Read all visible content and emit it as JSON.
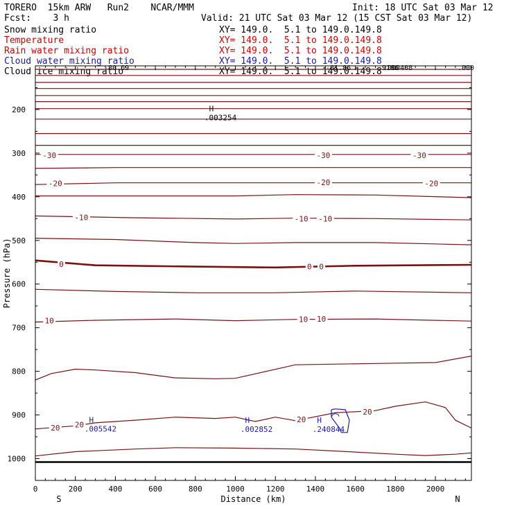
{
  "header": {
    "model": "TORERO  15km ARW   Run2    NCAR/MMM",
    "init": "Init: 18 UTC Sat 03 Mar 12",
    "fcst": "Fcst:    3 h",
    "valid": "Valid: 21 UTC Sat 03 Mar 12 (15 CST Sat 03 Mar 12)"
  },
  "legend": [
    {
      "label": "Snow mixing ratio",
      "xy": "XY= 149.0.  5.1 to 149.0.149.8",
      "color": "#000000"
    },
    {
      "label": "Temperature",
      "xy": "XY= 149.0.  5.1 to 149.0.149.8",
      "color": "#cc0000"
    },
    {
      "label": "Rain water mixing ratio",
      "xy": "XY= 149.0.  5.1 to 149.0.149.8",
      "color": "#cc0000"
    },
    {
      "label": "Cloud water mixing ratio",
      "xy": "XY= 149.0.  5.1 to 149.0.149.8",
      "color": "#1a1aaa"
    },
    {
      "label": "Cloud ice mixing ratio",
      "xy": "XY= 149.0.  5.1 to 149.0.149.8",
      "color": "#000000"
    }
  ],
  "chart_data": {
    "type": "line",
    "title": "Vertical cross section",
    "xlabel": "Distance (km)",
    "ylabel": "Pressure (hPa)",
    "xlim": [
      0,
      2180
    ],
    "ylim": [
      1050,
      100
    ],
    "x_ticks": [
      0,
      200,
      400,
      600,
      800,
      1000,
      1200,
      1400,
      1600,
      1800,
      2000
    ],
    "y_ticks": [
      200,
      300,
      400,
      500,
      600,
      700,
      800,
      900,
      1000
    ],
    "end_labels": {
      "left": "S",
      "right": "N"
    },
    "contour_color": "#7a1010",
    "isotherms": [
      {
        "level": -80,
        "points": [
          [
            0,
            108
          ],
          [
            2180,
            108
          ]
        ]
      },
      {
        "level": -75,
        "points": [
          [
            0,
            122
          ],
          [
            2180,
            122
          ]
        ]
      },
      {
        "level": -70,
        "points": [
          [
            0,
            138
          ],
          [
            2180,
            138
          ]
        ]
      },
      {
        "level": -65,
        "points": [
          [
            0,
            152
          ],
          [
            2180,
            152
          ]
        ]
      },
      {
        "level": -60,
        "points": [
          [
            0,
            168
          ],
          [
            2180,
            168
          ]
        ]
      },
      {
        "level": -55,
        "points": [
          [
            0,
            182
          ],
          [
            2180,
            182
          ]
        ]
      },
      {
        "level": -50,
        "points": [
          [
            0,
            198
          ],
          [
            2180,
            198
          ]
        ]
      },
      {
        "level": -45,
        "points": [
          [
            0,
            222
          ],
          [
            2180,
            222
          ]
        ]
      },
      {
        "level": -40,
        "points": [
          [
            0,
            255
          ],
          [
            2180,
            255
          ]
        ]
      },
      {
        "level": -35,
        "points": [
          [
            0,
            282
          ],
          [
            2180,
            282
          ]
        ]
      },
      {
        "level": -30,
        "points": [
          [
            0,
            303
          ],
          [
            2180,
            303
          ]
        ]
      },
      {
        "level": -25,
        "points": [
          [
            0,
            335
          ],
          [
            400,
            333
          ],
          [
            1200,
            333
          ],
          [
            2180,
            333
          ]
        ]
      },
      {
        "level": -20,
        "points": [
          [
            0,
            372
          ],
          [
            400,
            368
          ],
          [
            1300,
            368
          ],
          [
            2180,
            368
          ]
        ]
      },
      {
        "level": -15,
        "points": [
          [
            0,
            398
          ],
          [
            600,
            398
          ],
          [
            1000,
            398
          ],
          [
            1300,
            395
          ],
          [
            1700,
            396
          ],
          [
            2180,
            402
          ]
        ]
      },
      {
        "level": -10,
        "points": [
          [
            0,
            444
          ],
          [
            500,
            448
          ],
          [
            1000,
            451
          ],
          [
            1300,
            449
          ],
          [
            1700,
            450
          ],
          [
            2180,
            453
          ]
        ]
      },
      {
        "level": -5,
        "points": [
          [
            0,
            495
          ],
          [
            400,
            498
          ],
          [
            800,
            505
          ],
          [
            1000,
            507
          ],
          [
            1300,
            505
          ],
          [
            1700,
            505
          ],
          [
            2180,
            510
          ]
        ]
      },
      {
        "level": 0,
        "points": [
          [
            0,
            546
          ],
          [
            300,
            557
          ],
          [
            800,
            560
          ],
          [
            1200,
            562
          ],
          [
            1600,
            558
          ],
          [
            2180,
            556
          ]
        ],
        "bold": true
      },
      {
        "level": 5,
        "points": [
          [
            0,
            612
          ],
          [
            400,
            617
          ],
          [
            800,
            620
          ],
          [
            1200,
            620
          ],
          [
            1600,
            616
          ],
          [
            2180,
            620
          ]
        ]
      },
      {
        "level": 10,
        "points": [
          [
            0,
            687
          ],
          [
            300,
            683
          ],
          [
            700,
            680
          ],
          [
            1000,
            684
          ],
          [
            1300,
            681
          ],
          [
            1700,
            680
          ],
          [
            2180,
            685
          ]
        ]
      },
      {
        "level": 15,
        "points": [
          [
            0,
            820
          ],
          [
            80,
            805
          ],
          [
            200,
            795
          ],
          [
            300,
            797
          ],
          [
            500,
            803
          ],
          [
            700,
            815
          ],
          [
            900,
            817
          ],
          [
            1000,
            816
          ],
          [
            1300,
            785
          ],
          [
            1700,
            782
          ],
          [
            2000,
            780
          ],
          [
            2180,
            765
          ]
        ]
      },
      {
        "level": 20,
        "points": [
          [
            0,
            932
          ],
          [
            200,
            925
          ],
          [
            300,
            918
          ],
          [
            500,
            912
          ],
          [
            700,
            905
          ],
          [
            900,
            908
          ],
          [
            1000,
            905
          ],
          [
            1100,
            915
          ],
          [
            1200,
            905
          ],
          [
            1300,
            913
          ],
          [
            1500,
            895
          ],
          [
            1700,
            890
          ],
          [
            1800,
            880
          ],
          [
            1950,
            870
          ],
          [
            2050,
            883
          ],
          [
            2100,
            912
          ],
          [
            2180,
            930
          ]
        ]
      },
      {
        "level": 25,
        "points": [
          [
            0,
            994
          ],
          [
            200,
            984
          ],
          [
            500,
            978
          ],
          [
            700,
            975
          ],
          [
            1000,
            976
          ],
          [
            1300,
            978
          ],
          [
            1600,
            985
          ],
          [
            1800,
            990
          ],
          [
            1950,
            993
          ],
          [
            2100,
            990
          ],
          [
            2180,
            987
          ]
        ]
      }
    ],
    "isotherm_labels": [
      {
        "text": "-30",
        "x": 70,
        "p": 305
      },
      {
        "text": "-30",
        "x": 1440,
        "p": 305
      },
      {
        "text": "-30",
        "x": 1920,
        "p": 305
      },
      {
        "text": "-20",
        "x": 100,
        "p": 369
      },
      {
        "text": "-20",
        "x": 1440,
        "p": 367
      },
      {
        "text": "-20",
        "x": 1980,
        "p": 369
      },
      {
        "text": "-10",
        "x": 230,
        "p": 447
      },
      {
        "text": "-10",
        "x": 1330,
        "p": 450
      },
      {
        "text": "-10",
        "x": 1450,
        "p": 450
      },
      {
        "text": "0",
        "x": 130,
        "p": 554
      },
      {
        "text": "0",
        "x": 1370,
        "p": 560
      },
      {
        "text": "0",
        "x": 1430,
        "p": 560
      },
      {
        "text": "10",
        "x": 70,
        "p": 684
      },
      {
        "text": "10",
        "x": 1340,
        "p": 681
      },
      {
        "text": "10",
        "x": 1430,
        "p": 680
      },
      {
        "text": "20",
        "x": 100,
        "p": 929
      },
      {
        "text": "20",
        "x": 220,
        "p": 922
      },
      {
        "text": "20",
        "x": 1330,
        "p": 910
      },
      {
        "text": "20",
        "x": 1660,
        "p": 893
      }
    ],
    "maxima": [
      {
        "label": "H",
        "value": ".003254",
        "x": 880,
        "p": 204,
        "color": "#000000"
      },
      {
        "label": "H",
        "value": ".005542",
        "x": 280,
        "p": 917,
        "color": "#1a1aaa"
      },
      {
        "label": "H",
        "value": ".002852",
        "x": 1060,
        "p": 918,
        "color": "#1a1aaa"
      },
      {
        "label": "H",
        "value": ".240844",
        "x": 1420,
        "p": 918,
        "color": "#1a1aaa"
      }
    ],
    "top_edge_labels": [
      "-80.69",
      "-81.86",
      ".9186",
      ".000408",
      ".000"
    ],
    "cloud_water_contour": [
      [
        1480,
        888
      ],
      [
        1500,
        886
      ],
      [
        1550,
        888
      ],
      [
        1570,
        912
      ],
      [
        1560,
        940
      ],
      [
        1530,
        940
      ],
      [
        1520,
        930
      ],
      [
        1480,
        905
      ],
      [
        1480,
        888
      ]
    ],
    "ground_pressure": 1008
  }
}
